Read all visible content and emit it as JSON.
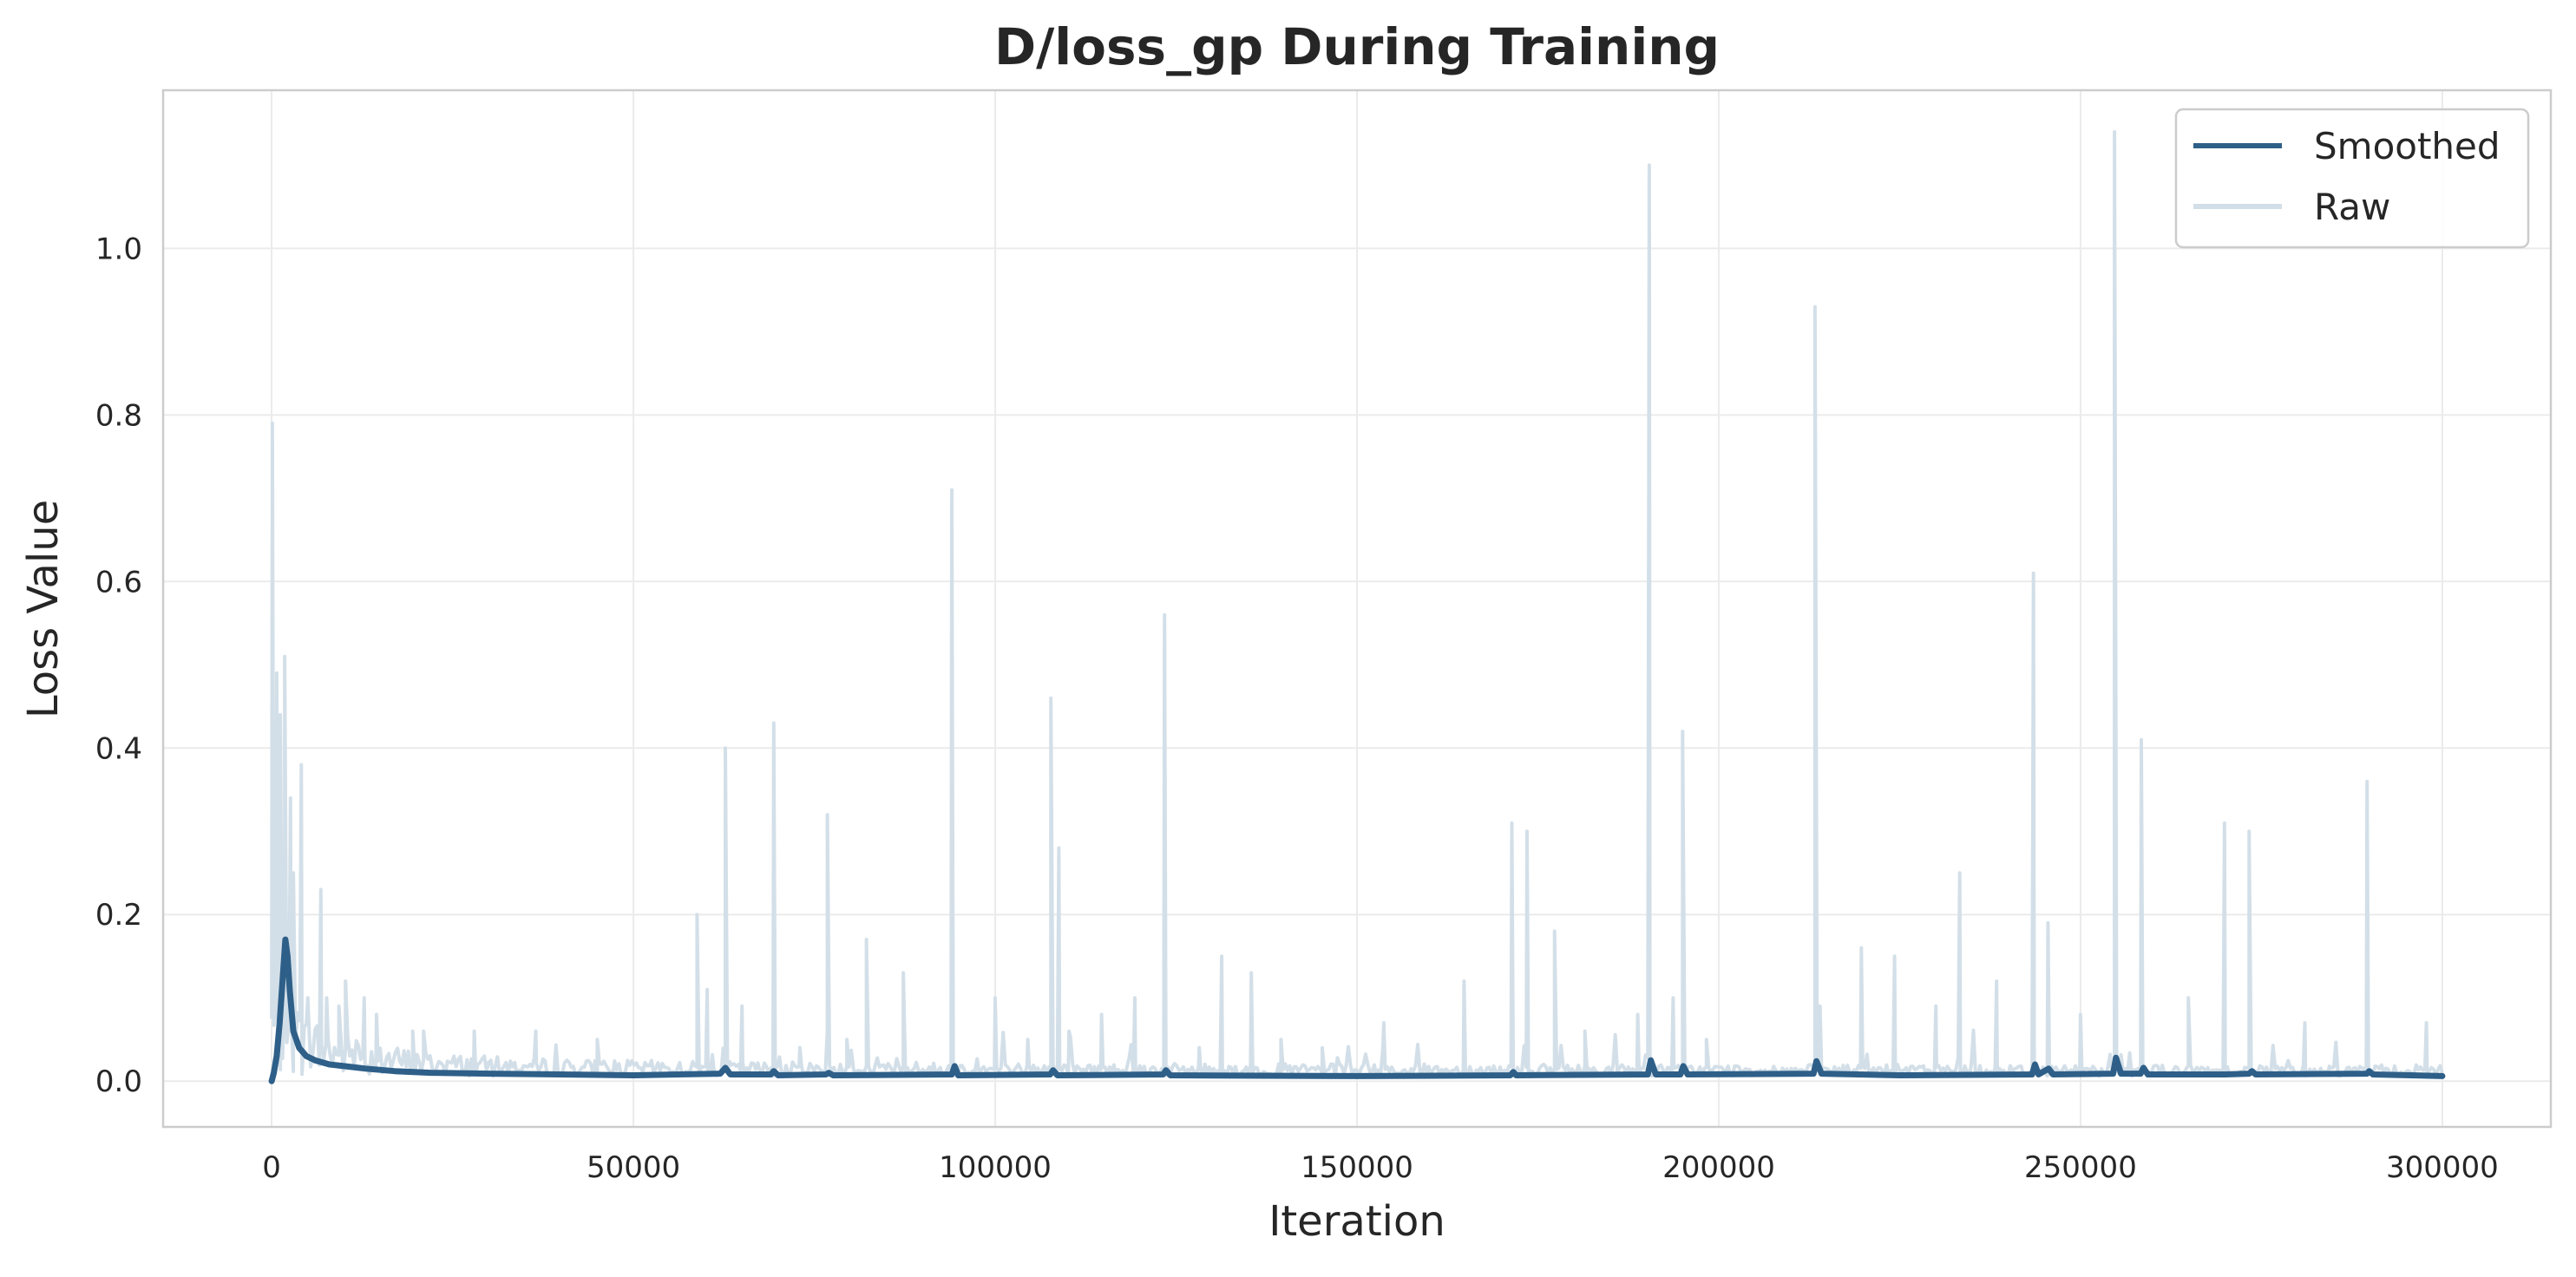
{
  "chart_data": {
    "type": "line",
    "title": "D/loss_gp During Training",
    "xlabel": "Iteration",
    "ylabel": "Loss Value",
    "xlim": [
      -15000,
      315000
    ],
    "ylim": [
      -0.055,
      1.19
    ],
    "xticks": [
      0,
      50000,
      100000,
      150000,
      200000,
      250000,
      300000
    ],
    "xtick_labels": [
      "0",
      "50000",
      "100000",
      "150000",
      "200000",
      "250000",
      "300000"
    ],
    "yticks": [
      0.0,
      0.2,
      0.4,
      0.6,
      0.8,
      1.0
    ],
    "ytick_labels": [
      "0.0",
      "0.2",
      "0.4",
      "0.6",
      "0.8",
      "1.0"
    ],
    "grid": true,
    "legend_position": "top-right",
    "colors": {
      "smoothed": "#2e5f88",
      "raw": "#d3dfe8"
    },
    "series": [
      {
        "name": "Raw",
        "baseline": 0.015,
        "spikes": [
          [
            100,
            0.79
          ],
          [
            700,
            0.49
          ],
          [
            1200,
            0.44
          ],
          [
            1800,
            0.51
          ],
          [
            2600,
            0.34
          ],
          [
            3000,
            0.25
          ],
          [
            4100,
            0.38
          ],
          [
            5000,
            0.1
          ],
          [
            6800,
            0.23
          ],
          [
            7600,
            0.1
          ],
          [
            9300,
            0.09
          ],
          [
            10200,
            0.12
          ],
          [
            12800,
            0.1
          ],
          [
            14500,
            0.08
          ],
          [
            19500,
            0.06
          ],
          [
            21000,
            0.06
          ],
          [
            28000,
            0.06
          ],
          [
            36500,
            0.06
          ],
          [
            45000,
            0.05
          ],
          [
            58800,
            0.2
          ],
          [
            60200,
            0.11
          ],
          [
            62700,
            0.4
          ],
          [
            65000,
            0.09
          ],
          [
            69400,
            0.43
          ],
          [
            73000,
            0.04
          ],
          [
            76800,
            0.32
          ],
          [
            79500,
            0.05
          ],
          [
            82200,
            0.17
          ],
          [
            87300,
            0.13
          ],
          [
            94000,
            0.71
          ],
          [
            100000,
            0.1
          ],
          [
            104500,
            0.05
          ],
          [
            107700,
            0.46
          ],
          [
            108800,
            0.28
          ],
          [
            110200,
            0.06
          ],
          [
            114700,
            0.08
          ],
          [
            119300,
            0.1
          ],
          [
            123400,
            0.56
          ],
          [
            128200,
            0.04
          ],
          [
            131300,
            0.15
          ],
          [
            135400,
            0.13
          ],
          [
            139500,
            0.05
          ],
          [
            145200,
            0.04
          ],
          [
            153700,
            0.07
          ],
          [
            164800,
            0.12
          ],
          [
            171400,
            0.31
          ],
          [
            173500,
            0.3
          ],
          [
            177300,
            0.18
          ],
          [
            181500,
            0.06
          ],
          [
            188800,
            0.08
          ],
          [
            190400,
            1.1
          ],
          [
            193700,
            0.1
          ],
          [
            195000,
            0.42
          ],
          [
            198300,
            0.05
          ],
          [
            213300,
            0.93
          ],
          [
            214000,
            0.09
          ],
          [
            219700,
            0.16
          ],
          [
            224300,
            0.15
          ],
          [
            230000,
            0.09
          ],
          [
            233300,
            0.25
          ],
          [
            238400,
            0.12
          ],
          [
            243500,
            0.61
          ],
          [
            245500,
            0.19
          ],
          [
            250000,
            0.08
          ],
          [
            254700,
            1.14
          ],
          [
            258400,
            0.41
          ],
          [
            264900,
            0.1
          ],
          [
            269900,
            0.31
          ],
          [
            273300,
            0.3
          ],
          [
            281000,
            0.07
          ],
          [
            289600,
            0.36
          ],
          [
            297800,
            0.07
          ]
        ]
      },
      {
        "name": "Smoothed",
        "points": [
          [
            0,
            0.0
          ],
          [
            300,
            0.01
          ],
          [
            700,
            0.03
          ],
          [
            1100,
            0.07
          ],
          [
            1500,
            0.12
          ],
          [
            1900,
            0.17
          ],
          [
            2200,
            0.15
          ],
          [
            2500,
            0.11
          ],
          [
            3000,
            0.06
          ],
          [
            3800,
            0.04
          ],
          [
            4800,
            0.03
          ],
          [
            6000,
            0.025
          ],
          [
            8000,
            0.02
          ],
          [
            10000,
            0.018
          ],
          [
            13000,
            0.015
          ],
          [
            17000,
            0.012
          ],
          [
            22000,
            0.01
          ],
          [
            30000,
            0.009
          ],
          [
            40000,
            0.008
          ],
          [
            50000,
            0.007
          ],
          [
            62000,
            0.009
          ],
          [
            62700,
            0.016
          ],
          [
            63400,
            0.008
          ],
          [
            69000,
            0.008
          ],
          [
            69400,
            0.012
          ],
          [
            70000,
            0.007
          ],
          [
            76600,
            0.008
          ],
          [
            77000,
            0.01
          ],
          [
            77600,
            0.007
          ],
          [
            94000,
            0.008
          ],
          [
            94400,
            0.018
          ],
          [
            94900,
            0.007
          ],
          [
            107600,
            0.008
          ],
          [
            108000,
            0.013
          ],
          [
            108600,
            0.007
          ],
          [
            123200,
            0.008
          ],
          [
            123600,
            0.013
          ],
          [
            124200,
            0.007
          ],
          [
            150000,
            0.006
          ],
          [
            171200,
            0.007
          ],
          [
            171600,
            0.011
          ],
          [
            172000,
            0.007
          ],
          [
            190200,
            0.008
          ],
          [
            190600,
            0.025
          ],
          [
            191300,
            0.008
          ],
          [
            194700,
            0.008
          ],
          [
            195100,
            0.018
          ],
          [
            195700,
            0.008
          ],
          [
            213100,
            0.009
          ],
          [
            213500,
            0.024
          ],
          [
            214200,
            0.009
          ],
          [
            225000,
            0.007
          ],
          [
            243300,
            0.008
          ],
          [
            243700,
            0.02
          ],
          [
            244200,
            0.008
          ],
          [
            245600,
            0.015
          ],
          [
            246200,
            0.008
          ],
          [
            254500,
            0.009
          ],
          [
            254900,
            0.028
          ],
          [
            255600,
            0.009
          ],
          [
            258300,
            0.009
          ],
          [
            258700,
            0.016
          ],
          [
            259300,
            0.008
          ],
          [
            270000,
            0.008
          ],
          [
            273300,
            0.009
          ],
          [
            273700,
            0.012
          ],
          [
            274200,
            0.008
          ],
          [
            289600,
            0.009
          ],
          [
            289900,
            0.012
          ],
          [
            290400,
            0.008
          ],
          [
            300000,
            0.006
          ]
        ]
      }
    ]
  }
}
